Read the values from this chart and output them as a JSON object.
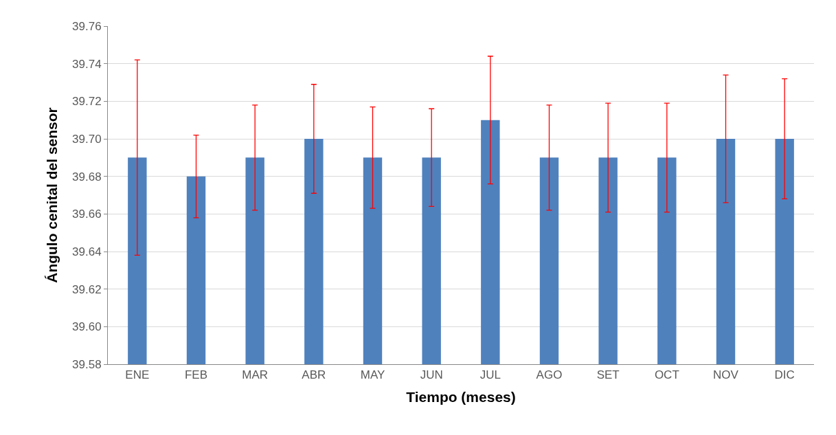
{
  "chart_data": {
    "type": "bar",
    "xlabel": "Tiempo (meses)",
    "ylabel": "Ángulo cenital del sensor",
    "categories": [
      "ENE",
      "FEB",
      "MAR",
      "ABR",
      "MAY",
      "JUN",
      "JUL",
      "AGO",
      "SET",
      "OCT",
      "NOV",
      "DIC"
    ],
    "values": [
      39.69,
      39.68,
      39.69,
      39.7,
      39.69,
      39.69,
      39.71,
      39.69,
      39.69,
      39.69,
      39.7,
      39.7
    ],
    "errors": [
      [
        39.638,
        39.742
      ],
      [
        39.658,
        39.702
      ],
      [
        39.662,
        39.718
      ],
      [
        39.671,
        39.729
      ],
      [
        39.663,
        39.717
      ],
      [
        39.664,
        39.716
      ],
      [
        39.676,
        39.744
      ],
      [
        39.662,
        39.718
      ],
      [
        39.661,
        39.719
      ],
      [
        39.661,
        39.719
      ],
      [
        39.666,
        39.734
      ],
      [
        39.668,
        39.732
      ]
    ],
    "color": "#4f81bd",
    "ylim": [
      39.58,
      39.76
    ],
    "yticks": [
      {
        "value": 39.58,
        "label": "39.58"
      },
      {
        "value": 39.6,
        "label": "39.60"
      },
      {
        "value": 39.62,
        "label": "39.62"
      },
      {
        "value": 39.64,
        "label": "39.64"
      },
      {
        "value": 39.66,
        "label": "39.66"
      },
      {
        "value": 39.68,
        "label": "39.68"
      },
      {
        "value": 39.7,
        "label": "39.70"
      },
      {
        "value": 39.72,
        "label": "39.72"
      },
      {
        "value": 39.74,
        "label": "39.74"
      },
      {
        "value": 39.76,
        "label": "39.76"
      }
    ],
    "grid": "y"
  }
}
